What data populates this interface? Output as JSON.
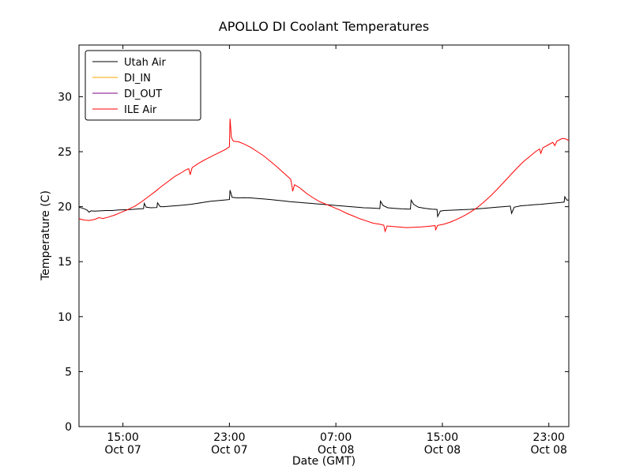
{
  "chart_data": {
    "type": "line",
    "title": "APOLLO DI Coolant Temperatures",
    "xlabel": "Date (GMT)",
    "ylabel": "Temperature (C)",
    "x_unit": "hours since Oct 07 00:00 GMT",
    "xlim": [
      11.7,
      48.5
    ],
    "ylim": [
      0,
      34.7
    ],
    "grid": false,
    "legend_position": "upper-left",
    "yticks": [
      0,
      5,
      10,
      15,
      20,
      25,
      30
    ],
    "xticks": [
      {
        "value": 15,
        "label": "15:00",
        "sublabel": "Oct 07"
      },
      {
        "value": 23,
        "label": "23:00",
        "sublabel": "Oct 07"
      },
      {
        "value": 31,
        "label": "07:00",
        "sublabel": "Oct 08"
      },
      {
        "value": 39,
        "label": "15:00",
        "sublabel": "Oct 08"
      },
      {
        "value": 47,
        "label": "23:00",
        "sublabel": "Oct 08"
      }
    ],
    "series": [
      {
        "name": "Utah Air",
        "color": "#000000",
        "points": [
          [
            11.7,
            19.95
          ],
          [
            12.0,
            19.85
          ],
          [
            12.3,
            19.7
          ],
          [
            12.45,
            19.5
          ],
          [
            12.6,
            19.62
          ],
          [
            12.9,
            19.6
          ],
          [
            13.3,
            19.62
          ],
          [
            13.7,
            19.65
          ],
          [
            14.2,
            19.65
          ],
          [
            14.7,
            19.7
          ],
          [
            15.2,
            19.72
          ],
          [
            15.7,
            19.75
          ],
          [
            16.2,
            19.8
          ],
          [
            16.55,
            19.82
          ],
          [
            16.6,
            20.3
          ],
          [
            16.75,
            19.95
          ],
          [
            17.1,
            19.9
          ],
          [
            17.55,
            19.92
          ],
          [
            17.6,
            20.35
          ],
          [
            17.8,
            20.0
          ],
          [
            18.1,
            20.0
          ],
          [
            18.6,
            20.05
          ],
          [
            19.1,
            20.1
          ],
          [
            19.6,
            20.15
          ],
          [
            20.1,
            20.22
          ],
          [
            20.6,
            20.3
          ],
          [
            21.1,
            20.4
          ],
          [
            21.6,
            20.5
          ],
          [
            22.1,
            20.55
          ],
          [
            22.6,
            20.6
          ],
          [
            23.0,
            20.65
          ],
          [
            23.05,
            21.5
          ],
          [
            23.2,
            20.85
          ],
          [
            23.6,
            20.8
          ],
          [
            24.1,
            20.82
          ],
          [
            24.6,
            20.8
          ],
          [
            25.1,
            20.75
          ],
          [
            25.6,
            20.7
          ],
          [
            26.1,
            20.65
          ],
          [
            26.6,
            20.58
          ],
          [
            27.1,
            20.52
          ],
          [
            27.6,
            20.45
          ],
          [
            28.1,
            20.4
          ],
          [
            28.6,
            20.35
          ],
          [
            29.1,
            20.3
          ],
          [
            29.6,
            20.25
          ],
          [
            30.1,
            20.2
          ],
          [
            30.6,
            20.15
          ],
          [
            31.1,
            20.1
          ],
          [
            31.6,
            20.05
          ],
          [
            32.1,
            20.0
          ],
          [
            32.6,
            19.95
          ],
          [
            33.1,
            19.9
          ],
          [
            33.6,
            19.88
          ],
          [
            34.1,
            19.85
          ],
          [
            34.3,
            19.82
          ],
          [
            34.35,
            20.5
          ],
          [
            34.55,
            20.1
          ],
          [
            34.9,
            19.9
          ],
          [
            35.4,
            19.85
          ],
          [
            36.0,
            19.8
          ],
          [
            36.6,
            19.78
          ],
          [
            36.65,
            20.6
          ],
          [
            36.85,
            20.2
          ],
          [
            37.2,
            19.95
          ],
          [
            37.7,
            19.85
          ],
          [
            38.2,
            19.78
          ],
          [
            38.6,
            19.75
          ],
          [
            38.65,
            19.1
          ],
          [
            38.85,
            19.6
          ],
          [
            39.1,
            19.65
          ],
          [
            39.6,
            19.68
          ],
          [
            40.1,
            19.7
          ],
          [
            40.6,
            19.73
          ],
          [
            41.1,
            19.76
          ],
          [
            41.6,
            19.8
          ],
          [
            42.1,
            19.85
          ],
          [
            42.6,
            19.9
          ],
          [
            43.1,
            19.95
          ],
          [
            43.6,
            20.0
          ],
          [
            44.1,
            20.05
          ],
          [
            44.2,
            19.4
          ],
          [
            44.4,
            19.95
          ],
          [
            44.9,
            20.08
          ],
          [
            45.4,
            20.12
          ],
          [
            45.9,
            20.18
          ],
          [
            46.4,
            20.22
          ],
          [
            46.9,
            20.28
          ],
          [
            47.4,
            20.33
          ],
          [
            47.9,
            20.38
          ],
          [
            48.15,
            20.42
          ],
          [
            48.2,
            20.9
          ],
          [
            48.35,
            20.6
          ],
          [
            48.5,
            20.6
          ]
        ]
      },
      {
        "name": "DI_IN",
        "color": "#ffa500",
        "points": []
      },
      {
        "name": "DI_OUT",
        "color": "#800080",
        "points": []
      },
      {
        "name": "ILE Air",
        "color": "#ff0000",
        "points": [
          [
            11.7,
            18.9
          ],
          [
            12.1,
            18.78
          ],
          [
            12.5,
            18.75
          ],
          [
            12.9,
            18.85
          ],
          [
            13.2,
            19.0
          ],
          [
            13.5,
            18.92
          ],
          [
            13.9,
            19.05
          ],
          [
            14.4,
            19.25
          ],
          [
            14.9,
            19.5
          ],
          [
            15.4,
            19.75
          ],
          [
            15.9,
            20.05
          ],
          [
            16.4,
            20.45
          ],
          [
            16.9,
            20.9
          ],
          [
            17.4,
            21.35
          ],
          [
            17.9,
            21.85
          ],
          [
            18.4,
            22.3
          ],
          [
            18.9,
            22.75
          ],
          [
            19.4,
            23.1
          ],
          [
            19.8,
            23.4
          ],
          [
            19.95,
            23.45
          ],
          [
            20.05,
            22.9
          ],
          [
            20.2,
            23.55
          ],
          [
            20.7,
            23.95
          ],
          [
            21.2,
            24.3
          ],
          [
            21.7,
            24.6
          ],
          [
            22.2,
            24.9
          ],
          [
            22.7,
            25.2
          ],
          [
            23.0,
            25.45
          ],
          [
            23.05,
            28.0
          ],
          [
            23.15,
            26.3
          ],
          [
            23.3,
            25.95
          ],
          [
            23.7,
            25.9
          ],
          [
            24.1,
            25.7
          ],
          [
            24.6,
            25.4
          ],
          [
            25.1,
            25.0
          ],
          [
            25.6,
            24.6
          ],
          [
            26.1,
            24.1
          ],
          [
            26.6,
            23.6
          ],
          [
            27.1,
            23.05
          ],
          [
            27.6,
            22.5
          ],
          [
            27.7,
            21.9
          ],
          [
            27.75,
            21.4
          ],
          [
            27.9,
            22.0
          ],
          [
            28.3,
            21.7
          ],
          [
            28.8,
            21.2
          ],
          [
            29.3,
            20.8
          ],
          [
            29.8,
            20.45
          ],
          [
            30.3,
            20.2
          ],
          [
            30.8,
            19.95
          ],
          [
            31.3,
            19.7
          ],
          [
            31.8,
            19.4
          ],
          [
            32.3,
            19.15
          ],
          [
            32.8,
            18.9
          ],
          [
            33.3,
            18.7
          ],
          [
            33.8,
            18.5
          ],
          [
            34.3,
            18.4
          ],
          [
            34.6,
            18.32
          ],
          [
            34.7,
            17.75
          ],
          [
            34.85,
            18.25
          ],
          [
            35.3,
            18.2
          ],
          [
            35.8,
            18.15
          ],
          [
            36.3,
            18.1
          ],
          [
            36.8,
            18.12
          ],
          [
            37.3,
            18.15
          ],
          [
            37.8,
            18.2
          ],
          [
            38.2,
            18.25
          ],
          [
            38.45,
            18.28
          ],
          [
            38.5,
            17.9
          ],
          [
            38.65,
            18.3
          ],
          [
            39.1,
            18.4
          ],
          [
            39.6,
            18.6
          ],
          [
            40.1,
            18.85
          ],
          [
            40.6,
            19.15
          ],
          [
            41.1,
            19.5
          ],
          [
            41.6,
            19.9
          ],
          [
            42.1,
            20.4
          ],
          [
            42.6,
            20.95
          ],
          [
            43.1,
            21.55
          ],
          [
            43.6,
            22.2
          ],
          [
            44.1,
            22.85
          ],
          [
            44.6,
            23.5
          ],
          [
            45.1,
            24.1
          ],
          [
            45.6,
            24.6
          ],
          [
            46.0,
            25.0
          ],
          [
            46.3,
            25.25
          ],
          [
            46.4,
            24.85
          ],
          [
            46.55,
            25.35
          ],
          [
            47.0,
            25.65
          ],
          [
            47.3,
            25.85
          ],
          [
            47.45,
            25.55
          ],
          [
            47.6,
            25.95
          ],
          [
            48.0,
            26.2
          ],
          [
            48.3,
            26.15
          ],
          [
            48.5,
            26.0
          ]
        ]
      }
    ]
  }
}
